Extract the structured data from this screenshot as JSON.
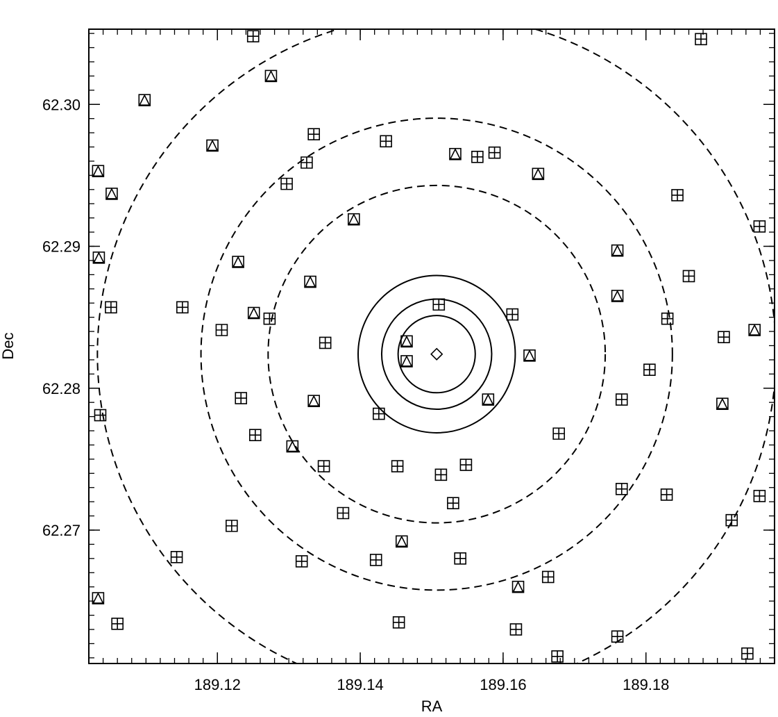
{
  "chart_data": {
    "type": "scatter",
    "xlabel": "RA",
    "ylabel": "Dec",
    "xlim": [
      189.102,
      189.198
    ],
    "ylim": [
      62.2606,
      62.3053
    ],
    "x_ticks": [
      {
        "value": 189.12,
        "label": "189.12"
      },
      {
        "value": 189.14,
        "label": "189.14"
      },
      {
        "value": 189.16,
        "label": "189.16"
      },
      {
        "value": 189.18,
        "label": "189.18"
      }
    ],
    "y_ticks": [
      {
        "value": 62.27,
        "label": "62.27"
      },
      {
        "value": 62.28,
        "label": "62.28"
      },
      {
        "value": 62.29,
        "label": "62.29"
      },
      {
        "value": 62.3,
        "label": "62.30"
      }
    ],
    "x_minor_step": 0.002,
    "y_minor_step": 0.001,
    "center": {
      "ra": 189.1507,
      "dec": 62.2824,
      "marker": "diamond"
    },
    "circles": [
      {
        "radius_ra": 0.0054,
        "style": "solid"
      },
      {
        "radius_ra": 0.0077,
        "style": "solid"
      },
      {
        "radius_ra": 0.011,
        "style": "solid"
      },
      {
        "radius_ra": 0.0236,
        "style": "dashed"
      },
      {
        "radius_ra": 0.033,
        "style": "dashed"
      },
      {
        "radius_ra": 0.0475,
        "style": "dashed"
      }
    ],
    "series": [
      {
        "marker": "square-cross",
        "points": [
          [
            189.125,
            62.3048
          ],
          [
            189.1877,
            62.3046
          ],
          [
            189.1335,
            62.2979
          ],
          [
            189.1436,
            62.2974
          ],
          [
            189.1564,
            62.2963
          ],
          [
            189.1588,
            62.2966
          ],
          [
            189.1325,
            62.2959
          ],
          [
            189.1297,
            62.2944
          ],
          [
            189.1844,
            62.2936
          ],
          [
            189.1959,
            62.2914
          ],
          [
            189.186,
            62.2879
          ],
          [
            189.1051,
            62.2857
          ],
          [
            189.1151,
            62.2857
          ],
          [
            189.151,
            62.2859
          ],
          [
            189.1613,
            62.2852
          ],
          [
            189.1273,
            62.2849
          ],
          [
            189.183,
            62.2849
          ],
          [
            189.1206,
            62.2841
          ],
          [
            189.1351,
            62.2832
          ],
          [
            189.1909,
            62.2836
          ],
          [
            189.1805,
            62.2813
          ],
          [
            189.1233,
            62.2793
          ],
          [
            189.1766,
            62.2792
          ],
          [
            189.1036,
            62.2781
          ],
          [
            189.1426,
            62.2782
          ],
          [
            189.1253,
            62.2767
          ],
          [
            189.1678,
            62.2768
          ],
          [
            189.1349,
            62.2745
          ],
          [
            189.1452,
            62.2745
          ],
          [
            189.1548,
            62.2746
          ],
          [
            189.1513,
            62.2739
          ],
          [
            189.1766,
            62.2729
          ],
          [
            189.1829,
            62.2725
          ],
          [
            189.1959,
            62.2724
          ],
          [
            189.153,
            62.2719
          ],
          [
            189.1376,
            62.2712
          ],
          [
            189.122,
            62.2703
          ],
          [
            189.192,
            62.2707
          ],
          [
            189.1143,
            62.2681
          ],
          [
            189.1318,
            62.2678
          ],
          [
            189.1422,
            62.2679
          ],
          [
            189.154,
            62.268
          ],
          [
            189.1663,
            62.2667
          ],
          [
            189.106,
            62.2634
          ],
          [
            189.1454,
            62.2635
          ],
          [
            189.1618,
            62.263
          ],
          [
            189.176,
            62.2625
          ],
          [
            189.1676,
            62.2611
          ],
          [
            189.1942,
            62.2613
          ]
        ]
      },
      {
        "marker": "square-triangle",
        "points": [
          [
            189.1275,
            62.302
          ],
          [
            189.1098,
            62.3003
          ],
          [
            189.1193,
            62.2971
          ],
          [
            189.1533,
            62.2965
          ],
          [
            189.1649,
            62.2951
          ],
          [
            189.1033,
            62.2953
          ],
          [
            189.1052,
            62.2937
          ],
          [
            189.1391,
            62.2919
          ],
          [
            189.176,
            62.2897
          ],
          [
            189.1034,
            62.2892
          ],
          [
            189.1229,
            62.2889
          ],
          [
            189.133,
            62.2875
          ],
          [
            189.176,
            62.2865
          ],
          [
            189.1251,
            62.2853
          ],
          [
            189.1465,
            62.2833
          ],
          [
            189.1952,
            62.2841
          ],
          [
            189.1637,
            62.2823
          ],
          [
            189.1465,
            62.2819
          ],
          [
            189.1335,
            62.2791
          ],
          [
            189.1579,
            62.2792
          ],
          [
            189.1907,
            62.2789
          ],
          [
            189.1305,
            62.2759
          ],
          [
            189.1458,
            62.2692
          ],
          [
            189.1621,
            62.266
          ],
          [
            189.1033,
            62.2652
          ]
        ]
      }
    ]
  }
}
